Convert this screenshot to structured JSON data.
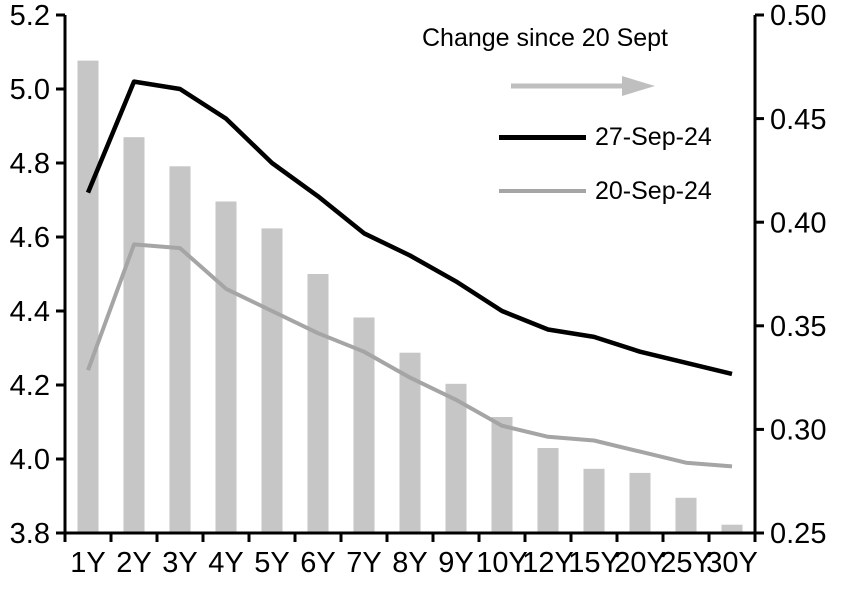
{
  "chart": {
    "legend": {
      "change_label": "Change since 20 Sept",
      "series1": "27-Sep-24",
      "series2": "20-Sep-24"
    },
    "colors": {
      "bar": "#c6c6c6",
      "line_black": "#000000",
      "line_gray": "#a5a5a5",
      "arrow": "#bfbfbf",
      "axis": "#000000"
    }
  },
  "chart_data": {
    "type": "bar",
    "subtype": "bar+line combo, dual axis",
    "categories": [
      "1Y",
      "2Y",
      "3Y",
      "4Y",
      "5Y",
      "6Y",
      "7Y",
      "8Y",
      "9Y",
      "10Y",
      "12Y",
      "15Y",
      "20Y",
      "25Y",
      "30Y"
    ],
    "series": [
      {
        "name": "Change since 20 Sept",
        "type": "bar",
        "axis": "right",
        "values": [
          0.478,
          0.441,
          0.427,
          0.41,
          0.397,
          0.375,
          0.354,
          0.337,
          0.322,
          0.306,
          0.291,
          0.281,
          0.279,
          0.267,
          0.254
        ]
      },
      {
        "name": "27-Sep-24",
        "type": "line",
        "axis": "left",
        "values": [
          4.72,
          5.02,
          5.0,
          4.92,
          4.8,
          4.71,
          4.61,
          4.55,
          4.48,
          4.4,
          4.35,
          4.33,
          4.29,
          4.26,
          4.23
        ]
      },
      {
        "name": "20-Sep-24",
        "type": "line",
        "axis": "left",
        "values": [
          4.24,
          4.58,
          4.57,
          4.46,
          4.4,
          4.34,
          4.29,
          4.22,
          4.16,
          4.09,
          4.06,
          4.05,
          4.02,
          3.99,
          3.98
        ]
      }
    ],
    "title": "",
    "xlabel": "",
    "ylabel_left": "",
    "ylabel_right": "",
    "left_axis": {
      "min": 3.8,
      "max": 5.2,
      "step": 0.2,
      "tick_labels": [
        "3.8",
        "4.0",
        "4.2",
        "4.4",
        "4.6",
        "4.8",
        "5.0",
        "5.2"
      ]
    },
    "right_axis": {
      "min": 0.25,
      "max": 0.5,
      "step": 0.05,
      "tick_labels": [
        "0.25",
        "0.30",
        "0.35",
        "0.40",
        "0.45",
        "0.50"
      ]
    },
    "grid": false,
    "legend_position": "top-right-inside"
  }
}
